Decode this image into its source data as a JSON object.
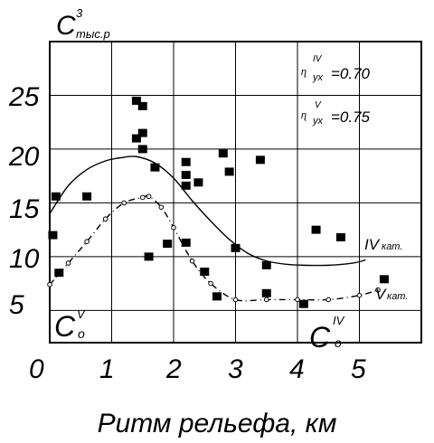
{
  "chart_data": {
    "type": "scatter",
    "title": "",
    "xlabel": "Ритм рельефа, км",
    "ylabel": "",
    "ylabel_main": "C",
    "ylabel_sup": "3",
    "ylabel_sub": "тыс.р",
    "xlim": [
      0,
      6
    ],
    "ylim": [
      2,
      30
    ],
    "xticks": [
      "0",
      "1",
      "2",
      "3",
      "4",
      "5"
    ],
    "yticks": [
      "25",
      "20",
      "15",
      "10",
      "5"
    ],
    "grid": true,
    "points": [
      [
        0.05,
        12.0
      ],
      [
        0.1,
        15.6
      ],
      [
        0.15,
        8.5
      ],
      [
        0.6,
        15.6
      ],
      [
        1.4,
        24.5
      ],
      [
        1.5,
        24.0
      ],
      [
        1.4,
        21.0
      ],
      [
        1.5,
        21.5
      ],
      [
        1.5,
        20.0
      ],
      [
        1.7,
        18.3
      ],
      [
        1.6,
        10.0
      ],
      [
        1.9,
        11.2
      ],
      [
        2.2,
        11.3
      ],
      [
        2.2,
        18.8
      ],
      [
        2.2,
        17.6
      ],
      [
        2.2,
        16.6
      ],
      [
        2.4,
        16.9
      ],
      [
        2.8,
        19.6
      ],
      [
        2.9,
        17.9
      ],
      [
        3.0,
        10.8
      ],
      [
        2.5,
        8.6
      ],
      [
        2.7,
        6.3
      ],
      [
        3.4,
        19.0
      ],
      [
        3.5,
        9.2
      ],
      [
        3.5,
        6.6
      ],
      [
        4.1,
        5.6
      ],
      [
        4.3,
        12.5
      ],
      [
        4.7,
        11.8
      ],
      [
        5.4,
        7.9
      ]
    ],
    "series": [
      {
        "name": "IV кат.",
        "style": "solid",
        "x": [
          0.0,
          0.3,
          0.6,
          0.9,
          1.15,
          1.4,
          1.7,
          2.0,
          2.3,
          2.6,
          2.9,
          3.2,
          3.5,
          3.8,
          4.1,
          4.5,
          4.9,
          5.1
        ],
        "y": [
          14.0,
          16.6,
          18.1,
          18.9,
          19.2,
          19.3,
          18.7,
          17.3,
          15.2,
          13.3,
          11.6,
          10.3,
          9.6,
          9.3,
          9.2,
          9.2,
          9.4,
          9.7
        ]
      },
      {
        "name": "V кат.",
        "style": "dash-dot-circle",
        "x": [
          0.0,
          0.3,
          0.6,
          0.9,
          1.2,
          1.5,
          1.6,
          1.8,
          2.0,
          2.3,
          2.6,
          3.0,
          3.5,
          4.0,
          4.5,
          5.0,
          5.3
        ],
        "y": [
          7.4,
          9.4,
          11.4,
          13.5,
          15.0,
          15.5,
          15.6,
          14.6,
          12.7,
          9.6,
          7.5,
          6.0,
          6.0,
          6.0,
          6.0,
          6.4,
          6.9
        ]
      }
    ],
    "annotations": {
      "ann1_value": "=0.70",
      "ann1_sup": "IV",
      "ann1_sub": "ух",
      "ann2_value": "=0.75",
      "ann2_sup": "V",
      "ann2_sub": "ух",
      "co_v_main": "C",
      "co_v_sup": "V",
      "co_v_sub": "o",
      "co_iv_main": "C",
      "co_iv_sup": "IV",
      "co_iv_sub": "o",
      "curve_iv_label": "IV",
      "curve_iv_sub": "кат.",
      "curve_v_label": "V",
      "curve_v_sub": "кат."
    }
  }
}
